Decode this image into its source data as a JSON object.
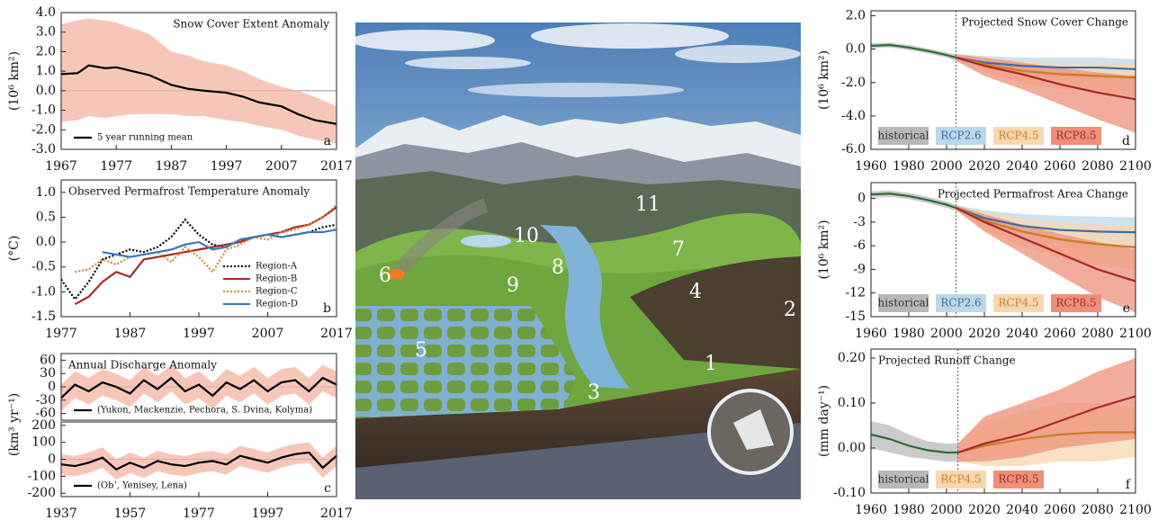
{
  "chart_data": [
    {
      "type": "line",
      "title": "Snow Cover Extent Anomaly",
      "ylabel": "(10⁶ km²)",
      "label": "a",
      "xlim": [
        1967,
        2017
      ],
      "xticks": [
        1967,
        1977,
        1987,
        1997,
        2007,
        2017
      ],
      "ylim": [
        -3,
        4
      ],
      "yticks": [
        {
          "value": 4,
          "label": "4.0"
        },
        {
          "value": 3,
          "label": "3.0"
        },
        {
          "value": 2,
          "label": "2.0"
        },
        {
          "value": 1,
          "label": "1.0"
        },
        {
          "value": 0,
          "label": "0.0"
        },
        {
          "value": -1,
          "label": "-1.0"
        },
        {
          "value": -2,
          "label": "-2.0"
        },
        {
          "value": -3,
          "label": "-3.0"
        }
      ],
      "zero_line": true,
      "x": [
        1967,
        1970,
        1972,
        1975,
        1977,
        1980,
        1983,
        1987,
        1990,
        1993,
        1997,
        2000,
        2003,
        2007,
        2010,
        2013,
        2017
      ],
      "series": [
        {
          "name": "5 year running mean",
          "color": "#000000",
          "band_color": "#f3b4a2",
          "values": [
            0.85,
            0.9,
            1.3,
            1.15,
            1.2,
            1.0,
            0.8,
            0.3,
            0.1,
            0.0,
            -0.1,
            -0.3,
            -0.6,
            -0.8,
            -1.2,
            -1.5,
            -1.7
          ],
          "upper": [
            3.4,
            3.6,
            3.7,
            3.6,
            3.5,
            3.2,
            2.9,
            2.0,
            1.8,
            1.5,
            1.3,
            1.0,
            0.6,
            0.2,
            0.0,
            -0.3,
            -0.8
          ],
          "lower": [
            -1.6,
            -1.5,
            -1.3,
            -1.4,
            -1.3,
            -1.2,
            -1.2,
            -1.2,
            -1.3,
            -1.3,
            -1.5,
            -1.6,
            -1.8,
            -2.0,
            -2.3,
            -2.5,
            -2.7
          ]
        }
      ]
    },
    {
      "type": "line",
      "title": "Observed Permafrost Temperature Anomaly",
      "ylabel": "(°C)",
      "label": "b",
      "xlim": [
        1977,
        2017
      ],
      "xticks": [
        1977,
        1987,
        1997,
        2007,
        2017
      ],
      "ylim": [
        -1.5,
        1.25
      ],
      "yticks": [
        {
          "value": 1,
          "label": "1.0"
        },
        0.5,
        {
          "value": 0,
          "label": "0.0"
        },
        -0.5,
        {
          "value": -1,
          "label": "-1.0"
        },
        -1.5
      ],
      "x": [
        1977,
        1979,
        1981,
        1983,
        1985,
        1987,
        1989,
        1991,
        1993,
        1995,
        1997,
        1999,
        2001,
        2003,
        2005,
        2007,
        2009,
        2011,
        2013,
        2015,
        2017
      ],
      "series": [
        {
          "name": "Region-A",
          "color": "#000000",
          "linestyle": "dotted",
          "values": [
            -0.75,
            -1.15,
            -0.8,
            -0.35,
            -0.25,
            -0.15,
            -0.2,
            -0.1,
            0.1,
            0.45,
            0.15,
            -0.05,
            -0.1,
            0.05,
            0.1,
            0.15,
            0.1,
            0.15,
            0.2,
            0.3,
            0.35
          ]
        },
        {
          "name": "Region-B",
          "color": "#a52a2a",
          "values": [
            null,
            -1.25,
            -1.1,
            -0.8,
            -0.6,
            -0.7,
            -0.35,
            -0.3,
            -0.25,
            -0.2,
            -0.15,
            -0.1,
            -0.05,
            0.0,
            0.1,
            0.15,
            0.2,
            0.3,
            0.35,
            0.5,
            0.7
          ]
        },
        {
          "name": "Region-C",
          "color": "#d08a2a",
          "linestyle": "dotted",
          "values": [
            null,
            -0.6,
            -0.55,
            -0.35,
            -0.45,
            -0.3,
            -0.25,
            -0.2,
            -0.4,
            -0.1,
            -0.3,
            -0.6,
            -0.15,
            -0.05,
            0.1,
            0.05,
            0.2,
            0.25,
            0.35,
            0.5,
            0.75
          ]
        },
        {
          "name": "Region-D",
          "color": "#3a78b5",
          "values": [
            null,
            null,
            null,
            -0.2,
            -0.25,
            -0.3,
            -0.25,
            -0.2,
            -0.15,
            -0.05,
            0.0,
            -0.15,
            -0.1,
            0.05,
            0.1,
            0.15,
            0.1,
            0.15,
            0.2,
            0.2,
            0.25
          ]
        }
      ]
    },
    {
      "type": "line",
      "title": "Annual Discharge Anomaly",
      "ylabel": "(km³ yr⁻¹)",
      "xlim": [
        1937,
        2017
      ],
      "ylim": [
        -75,
        75
      ],
      "yticks": [
        60,
        30,
        0,
        -30,
        -60
      ],
      "zero_line": true,
      "x": [
        1937,
        1941,
        1945,
        1949,
        1953,
        1957,
        1961,
        1965,
        1969,
        1973,
        1977,
        1981,
        1985,
        1989,
        1993,
        1997,
        2001,
        2005,
        2009,
        2013,
        2017
      ],
      "series": [
        {
          "name": "(Yukon, Mackenzie, Pechora, S. Dvina, Kolyma)",
          "color": "#000000",
          "band_color": "#f3b4a2",
          "values": [
            -25,
            5,
            -10,
            10,
            0,
            -15,
            15,
            -5,
            20,
            -10,
            5,
            -20,
            10,
            -5,
            15,
            -10,
            10,
            15,
            -10,
            20,
            5
          ],
          "upper": [
            5,
            35,
            20,
            40,
            30,
            15,
            45,
            25,
            50,
            20,
            35,
            10,
            40,
            25,
            45,
            20,
            40,
            45,
            20,
            50,
            35
          ],
          "lower": [
            -55,
            -25,
            -40,
            -20,
            -30,
            -45,
            -15,
            -35,
            -10,
            -40,
            -25,
            -50,
            -20,
            -35,
            -15,
            -40,
            -20,
            -15,
            -40,
            -10,
            -25
          ]
        }
      ]
    },
    {
      "type": "line",
      "label": "c",
      "xlim": [
        1937,
        2017
      ],
      "xticks": [
        1937,
        1957,
        1977,
        1997,
        2017
      ],
      "ylim": [
        -220,
        220
      ],
      "yticks": [
        200,
        100,
        0,
        -100,
        -200
      ],
      "zero_line": true,
      "x": [
        1937,
        1941,
        1945,
        1949,
        1953,
        1957,
        1961,
        1965,
        1969,
        1973,
        1977,
        1981,
        1985,
        1989,
        1993,
        1997,
        2001,
        2005,
        2009,
        2013,
        2017
      ],
      "series": [
        {
          "name": "(Obʼ, Yenisey, Lena)",
          "color": "#000000",
          "band_color": "#f3b4a2",
          "values": [
            -30,
            -40,
            -20,
            10,
            -60,
            -20,
            -50,
            -10,
            -30,
            -40,
            -20,
            -10,
            -30,
            20,
            0,
            -20,
            10,
            30,
            40,
            -50,
            20
          ],
          "upper": [
            30,
            20,
            40,
            70,
            0,
            40,
            10,
            50,
            30,
            20,
            40,
            50,
            30,
            80,
            60,
            40,
            70,
            90,
            100,
            10,
            80
          ],
          "lower": [
            -90,
            -100,
            -80,
            -50,
            -120,
            -80,
            -110,
            -70,
            -90,
            -100,
            -80,
            -70,
            -90,
            -40,
            -60,
            -80,
            -50,
            -30,
            -20,
            -110,
            -40
          ]
        }
      ]
    },
    {
      "type": "line",
      "title": "Projected Snow Cover Change",
      "ylabel": "(10⁶ km²)",
      "label": "d",
      "divider": true,
      "xlim": [
        1960,
        2100
      ],
      "xticks": [
        1960,
        1980,
        2000,
        2020,
        2040,
        2060,
        2080,
        2100
      ],
      "ylim": [
        -6,
        2.3
      ],
      "yticks": [
        {
          "value": 2,
          "label": "2.0"
        },
        {
          "value": 0,
          "label": "0.0"
        },
        {
          "value": -2,
          "label": "-2.0"
        },
        {
          "value": -4,
          "label": "-4.0"
        },
        {
          "value": -6,
          "label": "-6.0"
        }
      ],
      "series": [
        {
          "name": "historical",
          "color": "#2e6b3a",
          "band_color": "#b9b9b9",
          "x": [
            1960,
            1970,
            1980,
            1990,
            2000,
            2005
          ],
          "values": [
            0.2,
            0.25,
            0.1,
            -0.1,
            -0.35,
            -0.5
          ],
          "upper": [
            0.35,
            0.4,
            0.25,
            0.05,
            -0.2,
            -0.3
          ],
          "lower": [
            0.05,
            0.1,
            -0.05,
            -0.25,
            -0.5,
            -0.7
          ]
        },
        {
          "name": "RCP2.6",
          "color": "#3a6ea5",
          "band_color": "#bcd7ea",
          "x": [
            2005,
            2020,
            2040,
            2060,
            2080,
            2100
          ],
          "values": [
            -0.5,
            -0.8,
            -1.0,
            -1.1,
            -1.1,
            -1.2
          ],
          "upper": [
            -0.3,
            -0.4,
            -0.5,
            -0.5,
            -0.5,
            -0.6
          ],
          "lower": [
            -0.7,
            -1.2,
            -1.5,
            -1.7,
            -1.8,
            -1.9
          ]
        },
        {
          "name": "RCP4.5",
          "color": "#c97d26",
          "band_color": "#f8d7b0",
          "x": [
            2005,
            2020,
            2040,
            2060,
            2080,
            2100
          ],
          "values": [
            -0.5,
            -0.9,
            -1.3,
            -1.5,
            -1.6,
            -1.7
          ],
          "upper": [
            -0.3,
            -0.5,
            -0.7,
            -0.8,
            -0.8,
            -0.9
          ],
          "lower": [
            -0.7,
            -1.4,
            -2.0,
            -2.4,
            -2.6,
            -2.8
          ]
        },
        {
          "name": "RCP8.5",
          "color": "#a52a2a",
          "band_color": "#ee9079",
          "x": [
            2005,
            2020,
            2040,
            2060,
            2080,
            2100
          ],
          "values": [
            -0.5,
            -1.0,
            -1.5,
            -2.1,
            -2.6,
            -3.0
          ],
          "upper": [
            -0.3,
            -0.5,
            -0.8,
            -1.1,
            -1.4,
            -1.6
          ],
          "lower": [
            -0.7,
            -1.6,
            -2.4,
            -3.3,
            -4.2,
            -5.0
          ]
        }
      ]
    },
    {
      "type": "line",
      "title": "Projected Permafrost Area Change",
      "ylabel": "(10⁶ km²)",
      "label": "e",
      "divider": true,
      "xlim": [
        1960,
        2100
      ],
      "xticks": [
        1960,
        1980,
        2000,
        2020,
        2040,
        2060,
        2080,
        2100
      ],
      "ylim": [
        -15,
        2
      ],
      "yticks": [
        0,
        -3,
        -6,
        -9,
        -12,
        -15
      ],
      "series": [
        {
          "name": "historical",
          "color": "#2e6b3a",
          "band_color": "#b9b9b9",
          "x": [
            1960,
            1970,
            1980,
            1990,
            2000,
            2005
          ],
          "values": [
            0.5,
            0.6,
            0.3,
            -0.2,
            -0.8,
            -1.2
          ],
          "upper": [
            0.9,
            1.0,
            0.7,
            0.2,
            -0.4,
            -0.8
          ],
          "lower": [
            0.1,
            0.2,
            -0.1,
            -0.6,
            -1.2,
            -1.6
          ]
        },
        {
          "name": "RCP2.6",
          "color": "#3a6ea5",
          "band_color": "#bcd7ea",
          "x": [
            2005,
            2020,
            2040,
            2060,
            2080,
            2100
          ],
          "values": [
            -1.2,
            -2.5,
            -3.5,
            -4.0,
            -4.2,
            -4.3
          ],
          "upper": [
            -0.9,
            -1.5,
            -2.0,
            -2.2,
            -2.3,
            -2.4
          ],
          "lower": [
            -1.5,
            -3.5,
            -5.0,
            -5.8,
            -6.2,
            -6.5
          ]
        },
        {
          "name": "RCP4.5",
          "color": "#c97d26",
          "band_color": "#f8d7b0",
          "x": [
            2005,
            2020,
            2040,
            2060,
            2080,
            2100
          ],
          "values": [
            -1.2,
            -2.8,
            -4.2,
            -5.2,
            -5.8,
            -6.2
          ],
          "upper": [
            -0.9,
            -1.8,
            -2.5,
            -3.0,
            -3.3,
            -3.5
          ],
          "lower": [
            -1.5,
            -4.0,
            -6.0,
            -7.5,
            -8.5,
            -9.0
          ]
        },
        {
          "name": "RCP8.5",
          "color": "#a52a2a",
          "band_color": "#ee9079",
          "x": [
            2005,
            2020,
            2040,
            2060,
            2080,
            2100
          ],
          "values": [
            -1.2,
            -3.0,
            -5.0,
            -7.0,
            -9.0,
            -10.5
          ],
          "upper": [
            -0.9,
            -2.0,
            -3.3,
            -4.5,
            -5.5,
            -6.5
          ],
          "lower": [
            -1.5,
            -4.2,
            -7.0,
            -9.8,
            -12.5,
            -14.5
          ]
        }
      ]
    },
    {
      "type": "line",
      "title": "Projected Runoff Change",
      "ylabel": "(mm day⁻¹)",
      "label": "f",
      "divider": true,
      "xlim": [
        1960,
        2100
      ],
      "xticks": [
        1960,
        1980,
        2000,
        2020,
        2040,
        2060,
        2080,
        2100
      ],
      "ylim": [
        -0.1,
        0.22
      ],
      "yticks": [
        {
          "value": 0.2,
          "label": "0.20"
        },
        {
          "value": 0.1,
          "label": "0.10"
        },
        {
          "value": 0,
          "label": "0.00"
        },
        {
          "value": -0.1,
          "label": "-0.10"
        }
      ],
      "series": [
        {
          "name": "historical",
          "color": "#2e6b3a",
          "band_color": "#b9b9b9",
          "x": [
            1960,
            1970,
            1980,
            1990,
            2000,
            2006
          ],
          "values": [
            0.03,
            0.02,
            0.005,
            -0.005,
            -0.01,
            -0.01
          ],
          "upper": [
            0.06,
            0.05,
            0.03,
            0.015,
            0.01,
            0.01
          ],
          "lower": [
            0.0,
            -0.01,
            -0.02,
            -0.025,
            -0.03,
            -0.03
          ]
        },
        {
          "name": "RCP4.5",
          "color": "#c97d26",
          "band_color": "#f8d7b0",
          "x": [
            2006,
            2020,
            2040,
            2060,
            2080,
            2100
          ],
          "values": [
            -0.01,
            0.005,
            0.02,
            0.03,
            0.035,
            0.035
          ],
          "upper": [
            0.01,
            0.06,
            0.08,
            0.1,
            0.1,
            0.09
          ],
          "lower": [
            -0.03,
            -0.04,
            -0.04,
            -0.03,
            -0.03,
            -0.02
          ]
        },
        {
          "name": "RCP8.5",
          "color": "#a52a2a",
          "band_color": "#ee9079",
          "x": [
            2006,
            2020,
            2040,
            2060,
            2080,
            2100
          ],
          "values": [
            -0.01,
            0.01,
            0.03,
            0.06,
            0.09,
            0.115
          ],
          "upper": [
            0.01,
            0.07,
            0.1,
            0.13,
            0.17,
            0.2
          ],
          "lower": [
            -0.03,
            -0.03,
            -0.02,
            0.0,
            0.01,
            0.02
          ]
        }
      ]
    }
  ],
  "illustration": {
    "labels": [
      "1",
      "2",
      "3",
      "4",
      "5",
      "6",
      "7",
      "8",
      "9",
      "10",
      "11"
    ]
  }
}
